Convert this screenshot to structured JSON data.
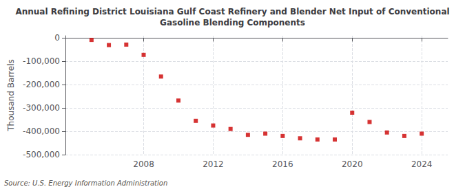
{
  "chart_data": {
    "type": "scatter",
    "title": "Annual Refining District Louisiana Gulf Coast Refinery and Blender Net Input of Conventional\nGasoline Blending Components",
    "ylabel": "Thousand Barrels",
    "annotations": [
      "Source: U.S. Energy Information Administration"
    ],
    "x": [
      2005,
      2006,
      2007,
      2008,
      2009,
      2010,
      2011,
      2012,
      2013,
      2014,
      2015,
      2016,
      2017,
      2018,
      2019,
      2020,
      2021,
      2022,
      2023,
      2024
    ],
    "values": [
      -8000,
      -30000,
      -28000,
      -72000,
      -165000,
      -268000,
      -355000,
      -375000,
      -390000,
      -415000,
      -410000,
      -420000,
      -430000,
      -435000,
      -435000,
      -320000,
      -360000,
      -405000,
      -420000,
      -410000
    ],
    "color": "#cc0000",
    "marker": "square",
    "xlim": [
      2003.5,
      2025.5
    ],
    "xticks": [
      2008,
      2012,
      2016,
      2020,
      2024
    ],
    "ylim": [
      -500000,
      10000
    ],
    "yticks": [
      0,
      {
        "value": -100000,
        "label": "-100,000"
      },
      {
        "value": -200000,
        "label": "-200,000"
      },
      {
        "value": -300000,
        "label": "-300,000"
      },
      {
        "value": -400000,
        "label": "-400,000"
      },
      {
        "value": -500000,
        "label": "-500,000"
      }
    ],
    "grid": true
  }
}
